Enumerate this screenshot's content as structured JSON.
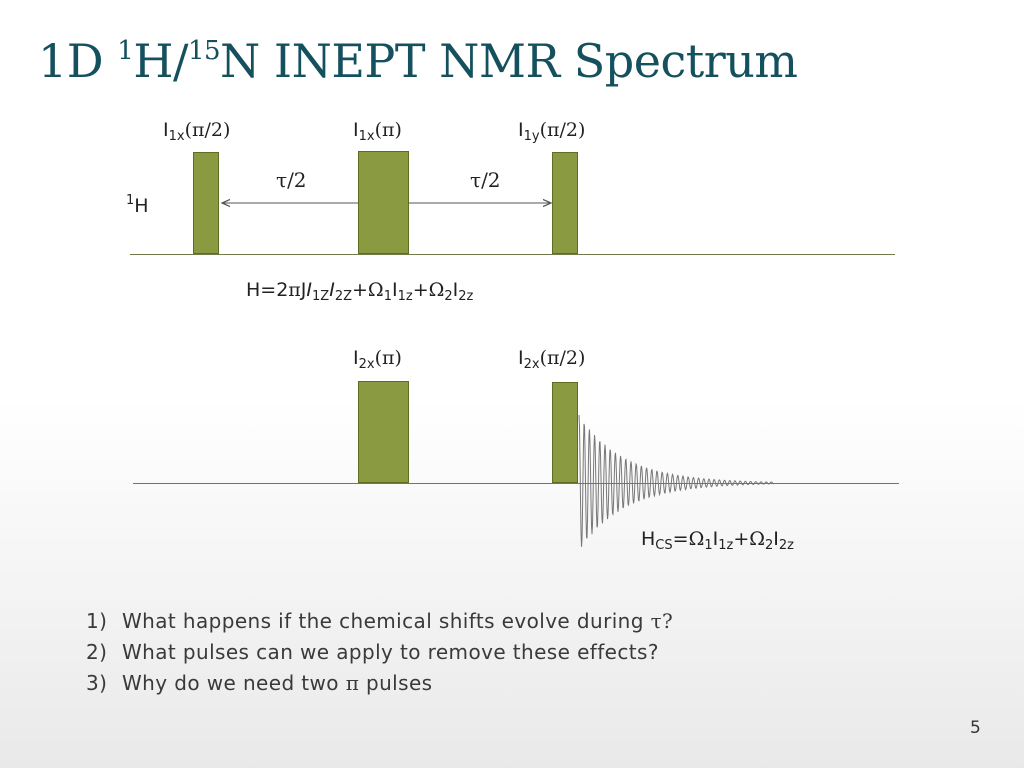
{
  "title": {
    "part1": "1D ",
    "sup1": "1",
    "part2": "H/",
    "sup2": "15",
    "part3": "N INEPT NMR Spectrum"
  },
  "proton": {
    "channel_label": {
      "sup": "1",
      "text": "H"
    },
    "pulse_labels": [
      {
        "base": "I",
        "sub": "1x",
        "arg": "(π/2)"
      },
      {
        "base": "I",
        "sub": "1x",
        "arg": "(π)"
      },
      {
        "base": "I",
        "sub": "1y",
        "arg": "(π/2)"
      }
    ],
    "delays": [
      "τ/2",
      "τ/2"
    ]
  },
  "hamiltonian": {
    "h": "H=2",
    "pi": "π",
    "j": "J",
    "i1": "I",
    "s1": "1Z",
    "i2": "I",
    "s2": "2Z",
    "plus1": "+",
    "om1": "Ω",
    "om1sub": "1",
    "i3": "I",
    "s3": "1z",
    "plus2": "+",
    "om2": "Ω",
    "om2sub": "2",
    "i4": "I",
    "s4": "2z"
  },
  "nitrogen": {
    "pulse_labels": [
      {
        "base": "I",
        "sub": "2x",
        "arg": "(π)"
      },
      {
        "base": "I",
        "sub": "2x",
        "arg": "(π/2)"
      }
    ]
  },
  "hcs": {
    "h": "H",
    "hsub": "CS",
    "eq": "=",
    "om1": "Ω",
    "om1sub": "1",
    "i1": "I",
    "s1": "1z",
    "plus": "+",
    "om2": "Ω",
    "om2sub": "2",
    "i2": "I",
    "s2": "2z"
  },
  "questions": [
    {
      "num": "1)",
      "text": "What happens if the chemical shifts evolve during ",
      "sym": "τ?"
    },
    {
      "num": "2)",
      "text": "What pulses can we apply to remove these effects?",
      "sym": ""
    },
    {
      "num": "3)",
      "text": "Why do we need two ",
      "sym": "π",
      "tail": " pulses"
    }
  ],
  "slide_number": "5",
  "colors": {
    "title": "#14505e",
    "pulse_fill": "#8a9a40",
    "axis": "#707a4a",
    "fid": "#777777"
  }
}
